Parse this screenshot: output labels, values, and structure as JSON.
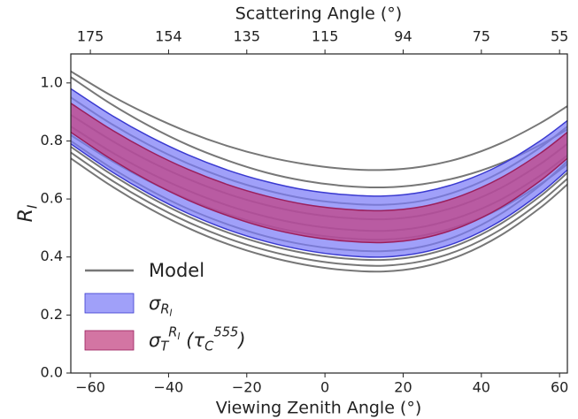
{
  "chart_data": {
    "type": "band_line",
    "xlabel": "Viewing Zenith Angle (°)",
    "x2label": "Scattering Angle (°)",
    "ylabel": "R_I",
    "x": [
      -65,
      -55,
      -45,
      -35,
      -25,
      -15,
      -5,
      5,
      15,
      25,
      35,
      45,
      55,
      62
    ],
    "xlim": [
      -65,
      62
    ],
    "ylim": [
      0,
      1.1
    ],
    "xticks": [
      {
        "value": -60,
        "label": "−60"
      },
      {
        "value": -40,
        "label": "−40"
      },
      {
        "value": -20,
        "label": "−20"
      },
      0,
      20,
      40,
      60
    ],
    "x2ticks": [
      {
        "value": -60,
        "label": "175"
      },
      {
        "value": -40,
        "label": "154"
      },
      {
        "value": -20,
        "label": "135"
      },
      {
        "value": 0,
        "label": "115"
      },
      {
        "value": 20,
        "label": "94"
      },
      {
        "value": 40,
        "label": "75"
      },
      {
        "value": 60,
        "label": "55"
      }
    ],
    "yticks": [
      {
        "value": 0,
        "label": "0.0"
      },
      0.2,
      0.4,
      0.6,
      0.8,
      {
        "value": 1,
        "label": "1.0"
      }
    ],
    "legend": "lower left",
    "models": {
      "name": "Model",
      "color": "#777777",
      "curves": [
        [
          1.04,
          0.959,
          0.89,
          0.831,
          0.783,
          0.746,
          0.72,
          0.704,
          0.7,
          0.712,
          0.742,
          0.792,
          0.861,
          0.92
        ],
        [
          1.02,
          0.93,
          0.852,
          0.786,
          0.733,
          0.691,
          0.662,
          0.645,
          0.64,
          0.651,
          0.678,
          0.723,
          0.786,
          0.84
        ],
        [
          0.95,
          0.862,
          0.786,
          0.722,
          0.67,
          0.63,
          0.601,
          0.585,
          0.58,
          0.594,
          0.632,
          0.693,
          0.777,
          0.85
        ],
        [
          0.89,
          0.805,
          0.731,
          0.669,
          0.618,
          0.579,
          0.551,
          0.535,
          0.53,
          0.544,
          0.58,
          0.638,
          0.72,
          0.79
        ],
        [
          0.85,
          0.765,
          0.691,
          0.629,
          0.578,
          0.539,
          0.511,
          0.495,
          0.49,
          0.504,
          0.54,
          0.598,
          0.68,
          0.75
        ],
        [
          0.82,
          0.735,
          0.661,
          0.599,
          0.548,
          0.509,
          0.481,
          0.465,
          0.46,
          0.474,
          0.51,
          0.568,
          0.65,
          0.72
        ],
        [
          0.8,
          0.71,
          0.632,
          0.566,
          0.513,
          0.471,
          0.442,
          0.425,
          0.42,
          0.436,
          0.479,
          0.549,
          0.646,
          0.73
        ],
        [
          0.78,
          0.688,
          0.608,
          0.54,
          0.485,
          0.443,
          0.413,
          0.395,
          0.39,
          0.406,
          0.447,
          0.515,
          0.609,
          0.69
        ],
        [
          0.76,
          0.668,
          0.588,
          0.52,
          0.465,
          0.423,
          0.393,
          0.375,
          0.37,
          0.386,
          0.427,
          0.495,
          0.589,
          0.67
        ],
        [
          0.74,
          0.648,
          0.568,
          0.5,
          0.445,
          0.403,
          0.373,
          0.355,
          0.35,
          0.366,
          0.407,
          0.475,
          0.569,
          0.65
        ]
      ]
    },
    "bands": [
      {
        "name": "σ_{R_I}",
        "color": "#7b7bf7",
        "edge_color": "#3a3ad0",
        "upper": [
          0.98,
          0.892,
          0.816,
          0.752,
          0.7,
          0.66,
          0.631,
          0.615,
          0.61,
          0.624,
          0.66,
          0.718,
          0.8,
          0.87
        ],
        "lower": [
          0.79,
          0.698,
          0.618,
          0.55,
          0.495,
          0.453,
          0.423,
          0.405,
          0.4,
          0.416,
          0.457,
          0.525,
          0.619,
          0.7
        ]
      },
      {
        "name": "σ_T^{R_I} (τ_C^{555})",
        "color": "#c2407f",
        "edge_color": "#9b1f5c",
        "upper": [
          0.93,
          0.842,
          0.766,
          0.702,
          0.65,
          0.61,
          0.581,
          0.565,
          0.56,
          0.574,
          0.612,
          0.673,
          0.757,
          0.83
        ],
        "lower": [
          0.83,
          0.74,
          0.662,
          0.596,
          0.543,
          0.501,
          0.472,
          0.455,
          0.45,
          0.465,
          0.505,
          0.571,
          0.662,
          0.74
        ]
      }
    ]
  }
}
